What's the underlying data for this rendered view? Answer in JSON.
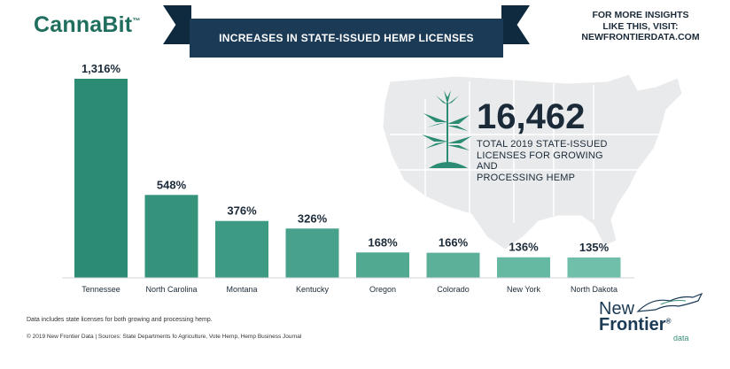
{
  "brand": {
    "name": "CannaBit",
    "tm": "™"
  },
  "header": {
    "title": "INCREASES IN STATE-ISSUED HEMP LICENSES"
  },
  "insights": {
    "line1": "FOR MORE INSIGHTS",
    "line2": "LIKE THIS, VISIT:",
    "line3": "NEWFRONTIERDATA.COM"
  },
  "highlight": {
    "number": "16,462",
    "caption_line1": "TOTAL 2019 STATE-ISSUED",
    "caption_line2": "LICENSES FOR GROWING AND",
    "caption_line3": "PROCESSING HEMP"
  },
  "colors": {
    "bar": "#2b8c73",
    "bar_light": "#5fb5a0",
    "navy": "#1b3a55",
    "map": "#e9eaec"
  },
  "chart_data": {
    "type": "bar",
    "categories": [
      "Tennessee",
      "North Carolina",
      "Montana",
      "Kentucky",
      "Oregon",
      "Colorado",
      "New York",
      "North Dakota"
    ],
    "values": [
      1316,
      548,
      376,
      326,
      168,
      166,
      136,
      135
    ],
    "value_labels": [
      "1,316%",
      "548%",
      "376%",
      "326%",
      "168%",
      "166%",
      "136%",
      "135%"
    ],
    "title": "INCREASES IN STATE-ISSUED HEMP LICENSES",
    "xlabel": "",
    "ylabel": "",
    "ylim": [
      0,
      1316
    ],
    "grid": false
  },
  "footer": {
    "note": "Data includes state licenses for both growing and processing hemp.",
    "copyright": "© 2019  New Frontier Data | Sources: State Departments fo Agriculture, Vote Hemp, Hemp Business Journal"
  },
  "nf_logo": {
    "word1": "New",
    "word2": "Frontier",
    "word3": "data",
    "reg": "®"
  }
}
